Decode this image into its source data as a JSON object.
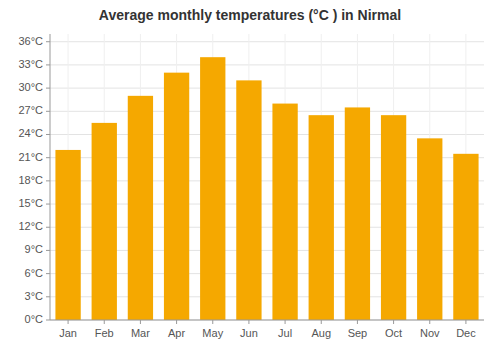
{
  "chart_data": {
    "type": "bar",
    "title": "Average monthly temperatures (°C ) in Nirmal",
    "categories": [
      "Jan",
      "Feb",
      "Mar",
      "Apr",
      "May",
      "Jun",
      "Jul",
      "Aug",
      "Sep",
      "Oct",
      "Nov",
      "Dec"
    ],
    "values": [
      22,
      25.5,
      29,
      32,
      34,
      31,
      28,
      26.5,
      27.5,
      26.5,
      23.5,
      21.5
    ],
    "color": "#F5A800",
    "ylim": [
      0,
      37
    ],
    "yticks": [
      {
        "value": 0,
        "label": "0°C"
      },
      {
        "value": 3,
        "label": "3°C"
      },
      {
        "value": 6,
        "label": "6°C"
      },
      {
        "value": 9,
        "label": "9°C"
      },
      {
        "value": 12,
        "label": "12°C"
      },
      {
        "value": 15,
        "label": "15°C"
      },
      {
        "value": 18,
        "label": "18°C"
      },
      {
        "value": 21,
        "label": "21°C"
      },
      {
        "value": 24,
        "label": "24°C"
      },
      {
        "value": 27,
        "label": "27°C"
      },
      {
        "value": 30,
        "label": "30°C"
      },
      {
        "value": 33,
        "label": "33°C"
      },
      {
        "value": 36,
        "label": "36°C"
      }
    ],
    "grid": true
  }
}
